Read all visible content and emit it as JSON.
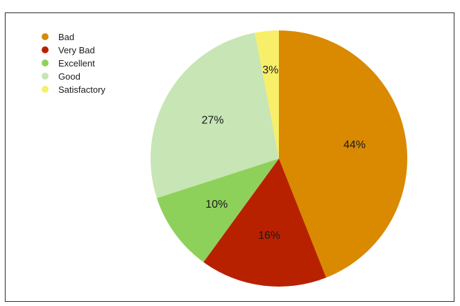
{
  "chart_data": {
    "type": "pie",
    "legend_position": "top-left",
    "slices": [
      {
        "name": "Bad",
        "value": 44,
        "label": "44%",
        "color": "#D98A00"
      },
      {
        "name": "Very Bad",
        "value": 16,
        "label": "16%",
        "color": "#B82100"
      },
      {
        "name": "Excellent",
        "value": 10,
        "label": "10%",
        "color": "#8ED15A"
      },
      {
        "name": "Good",
        "value": 27,
        "label": "27%",
        "color": "#C7E5B5"
      },
      {
        "name": "Satisfactory",
        "value": 3,
        "label": "3%",
        "color": "#F7EE6A"
      }
    ]
  }
}
